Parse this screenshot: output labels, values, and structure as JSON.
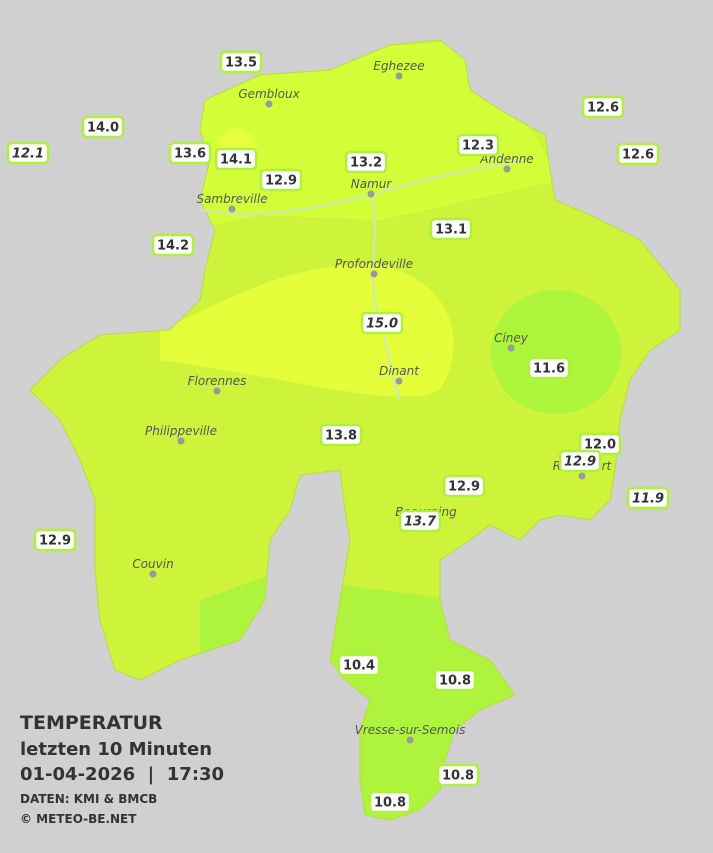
{
  "legend": {
    "title": "TEMPERATUR",
    "period": "letzten 10 Minuten",
    "datetime": "01-04-2026  |  17:30",
    "source": "DATEN: KMI & BMCB",
    "copyright": "© METEO-BE.NET"
  },
  "cities": [
    "Eghezee",
    "Gembloux",
    "Andenne",
    "Namur",
    "Sambreville",
    "Profondeville",
    "Ciney",
    "Dinant",
    "Florennes",
    "Philippeville",
    "Rochefort",
    "Beauraing",
    "Couvin",
    "Vresse-sur-Semois"
  ],
  "stations": [
    {
      "label": "13.5",
      "italic": false
    },
    {
      "label": "14.0",
      "italic": false
    },
    {
      "label": "12.1",
      "italic": true
    },
    {
      "label": "13.6",
      "italic": false
    },
    {
      "label": "14.1",
      "italic": false
    },
    {
      "label": "12.9",
      "italic": false
    },
    {
      "label": "13.2",
      "italic": false
    },
    {
      "label": "12.3",
      "italic": false
    },
    {
      "label": "12.6",
      "italic": false
    },
    {
      "label": "12.6",
      "italic": false
    },
    {
      "label": "14.2",
      "italic": false
    },
    {
      "label": "13.1",
      "italic": false
    },
    {
      "label": "15.0",
      "italic": true
    },
    {
      "label": "11.6",
      "italic": false
    },
    {
      "label": "13.8",
      "italic": false
    },
    {
      "label": "12.0",
      "italic": false
    },
    {
      "label": "12.9",
      "italic": true
    },
    {
      "label": "12.9",
      "italic": false
    },
    {
      "label": "11.9",
      "italic": true
    },
    {
      "label": "13.7",
      "italic": true
    },
    {
      "label": "12.9",
      "italic": false
    },
    {
      "label": "10.4",
      "italic": false
    },
    {
      "label": "10.8",
      "italic": false
    },
    {
      "label": "10.8",
      "italic": false
    },
    {
      "label": "10.8",
      "italic": false
    }
  ]
}
